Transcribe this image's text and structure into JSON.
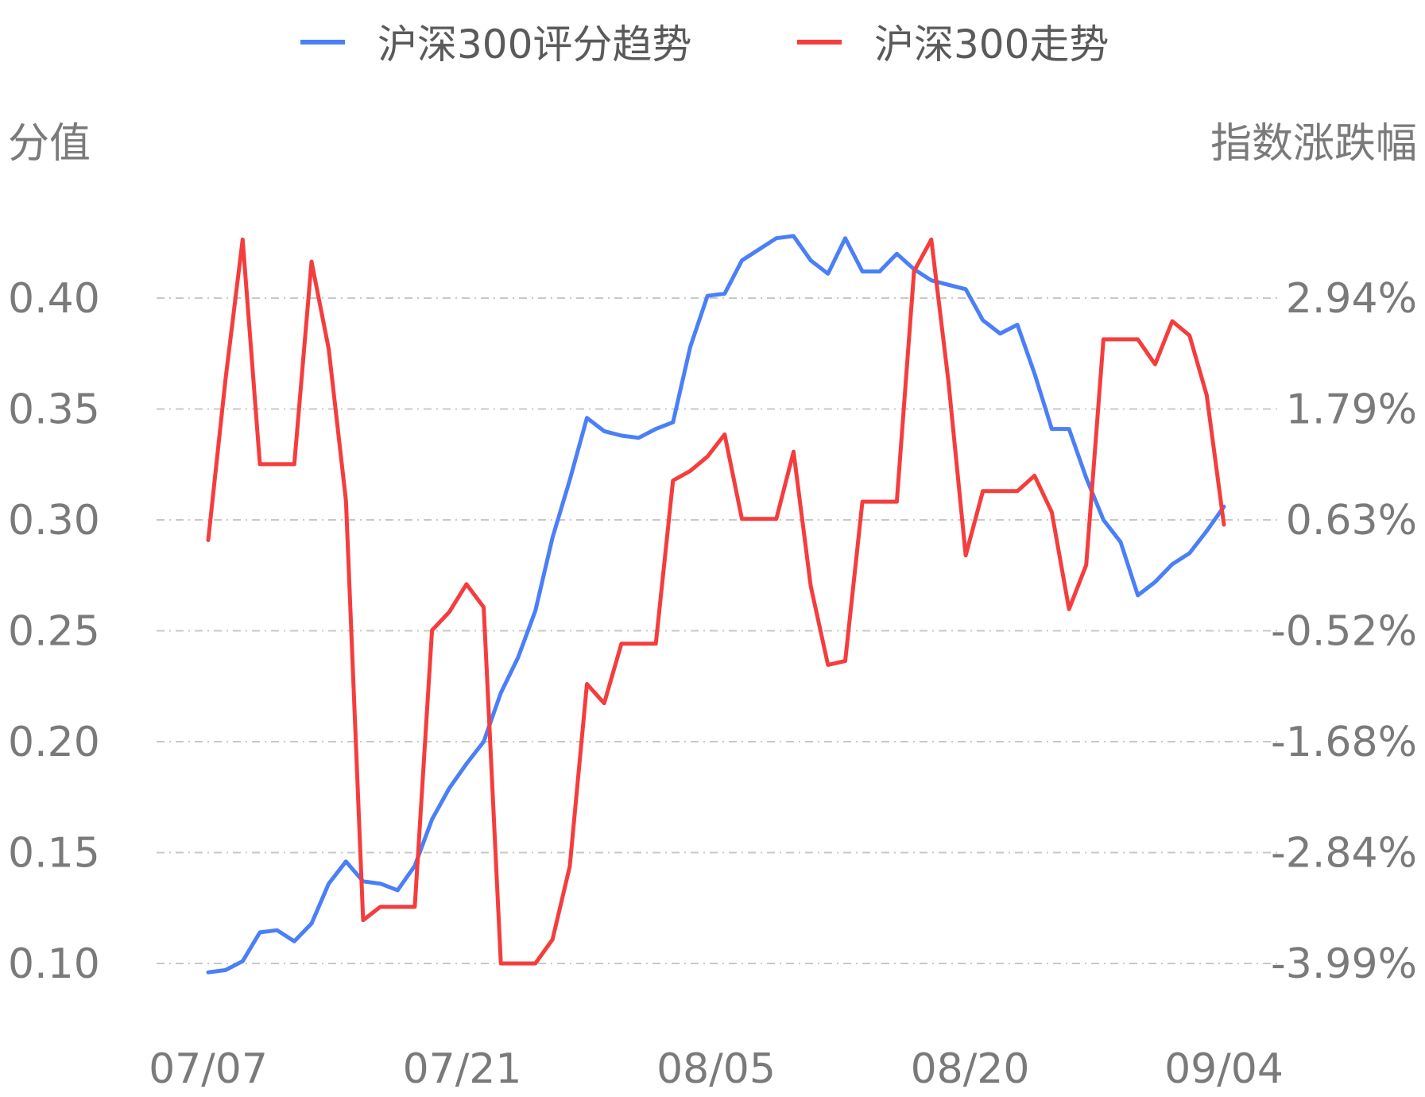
{
  "chart_data": {
    "type": "line",
    "title": "",
    "ylabel_left": "分值",
    "ylabel_right": "指数涨跌幅",
    "x_tick_labels": [
      "07/07",
      "07/21",
      "08/05",
      "08/20",
      "09/04"
    ],
    "left_axis": {
      "ticks": [
        "0.10",
        "0.15",
        "0.20",
        "0.25",
        "0.30",
        "0.35",
        "0.40"
      ],
      "min": 0.1,
      "max": 0.4
    },
    "right_axis": {
      "ticks": [
        "-3.99%",
        "-2.84%",
        "-1.68%",
        "-0.52%",
        "0.63%",
        "1.79%",
        "2.94%"
      ],
      "min": -3.99,
      "max": 2.94
    },
    "grid": true,
    "legend_position": "top-center",
    "series": [
      {
        "name": "沪深300评分趋势",
        "color": "#4a7ff7",
        "axis": "left",
        "values": [
          0.096,
          0.097,
          0.101,
          0.114,
          0.115,
          0.11,
          0.118,
          0.136,
          0.146,
          0.137,
          0.136,
          0.133,
          0.144,
          0.165,
          0.179,
          0.19,
          0.2,
          0.222,
          0.238,
          0.259,
          0.292,
          0.318,
          0.346,
          0.34,
          0.338,
          0.337,
          0.341,
          0.344,
          0.378,
          0.401,
          0.402,
          0.417,
          0.422,
          0.427,
          0.428,
          0.417,
          0.411,
          0.427,
          0.412,
          0.412,
          0.42,
          0.413,
          0.408,
          0.406,
          0.404,
          0.39,
          0.384,
          0.388,
          0.366,
          0.341,
          0.341,
          0.319,
          0.3,
          0.29,
          0.266,
          0.272,
          0.28,
          0.285,
          0.295,
          0.306
        ]
      },
      {
        "name": "沪深300走势",
        "color": "#f53d3d",
        "axis": "right",
        "values": [
          0.42,
          2.09,
          3.55,
          1.21,
          1.21,
          1.21,
          3.32,
          2.41,
          0.83,
          -3.54,
          -3.4,
          -3.4,
          -3.4,
          -0.52,
          -0.33,
          -0.04,
          -0.28,
          -3.99,
          -3.99,
          -3.99,
          -3.74,
          -2.98,
          -1.08,
          -1.28,
          -0.66,
          -0.66,
          -0.66,
          1.04,
          1.14,
          1.29,
          1.52,
          0.64,
          0.64,
          0.64,
          1.34,
          -0.06,
          -0.88,
          -0.84,
          0.82,
          0.82,
          0.82,
          3.22,
          3.55,
          2.07,
          0.26,
          0.93,
          0.93,
          0.93,
          1.09,
          0.71,
          -0.3,
          0.16,
          2.51,
          2.51,
          2.51,
          2.25,
          2.7,
          2.55,
          1.93,
          0.58
        ]
      }
    ]
  }
}
